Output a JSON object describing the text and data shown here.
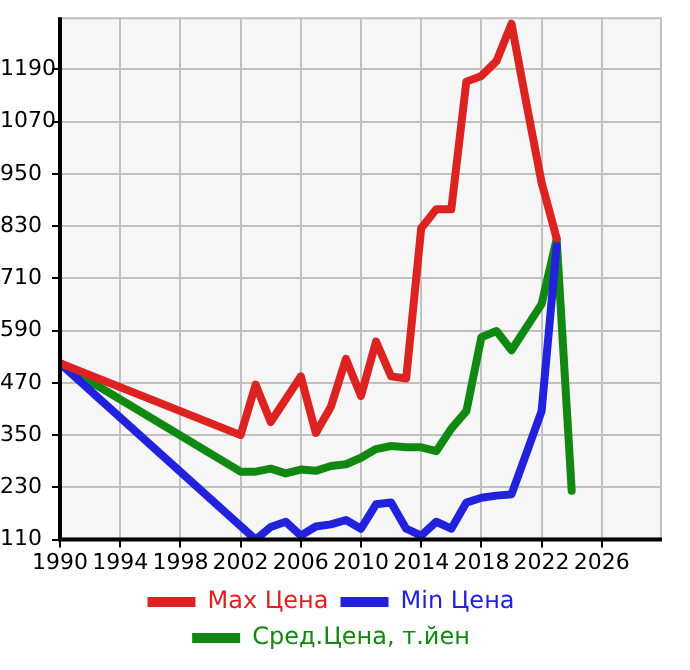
{
  "chart_data": {
    "type": "line",
    "xlim": [
      1990,
      2030
    ],
    "xticks": [
      1990,
      1994,
      1998,
      2002,
      2006,
      2010,
      2014,
      2018,
      2022,
      2026
    ],
    "ylim": [
      110,
      1310
    ],
    "yticks": [
      110,
      230,
      350,
      470,
      590,
      710,
      830,
      950,
      1070,
      1190
    ],
    "grid": true,
    "legend": "bottom",
    "marker": "none",
    "line_style": "solid",
    "series": [
      {
        "name": "Max Цена",
        "color": "#dd2222",
        "x": [
          1990,
          2002,
          2003,
          2004,
          2006,
          2007,
          2008,
          2009,
          2010,
          2011,
          2012,
          2013,
          2014,
          2015,
          2016,
          2017,
          2018,
          2019,
          2020,
          2021,
          2022,
          2023
        ],
        "values": [
          515,
          350,
          466,
          380,
          485,
          355,
          415,
          525,
          440,
          565,
          485,
          480,
          825,
          869,
          869,
          1162,
          1175,
          1209,
          1295,
          1110,
          930,
          802
        ]
      },
      {
        "name": "Min Цена",
        "color": "#2222dd",
        "x": [
          1990,
          2003,
          2004,
          2005,
          2006,
          2007,
          2008,
          2009,
          2010,
          2011,
          2012,
          2013,
          2014,
          2015,
          2016,
          2017,
          2018,
          2019,
          2020,
          2021,
          2022,
          2023
        ],
        "values": [
          515,
          110,
          139,
          151,
          119,
          140,
          145,
          155,
          135,
          191,
          195,
          135,
          119,
          151,
          135,
          195,
          206,
          211,
          214,
          309,
          405,
          785
        ]
      },
      {
        "name": "Сред.Цена, т.йен",
        "color": "#118811",
        "x": [
          1990,
          2002,
          2003,
          2004,
          2005,
          2006,
          2007,
          2008,
          2009,
          2010,
          2011,
          2012,
          2013,
          2014,
          2015,
          2016,
          2017,
          2018,
          2019,
          2020,
          2021,
          2022,
          2023,
          2024
        ],
        "values": [
          515,
          266,
          266,
          273,
          262,
          271,
          268,
          279,
          283,
          298,
          318,
          325,
          322,
          322,
          313,
          365,
          405,
          575,
          589,
          545,
          598,
          651,
          800,
          222
        ]
      }
    ]
  }
}
